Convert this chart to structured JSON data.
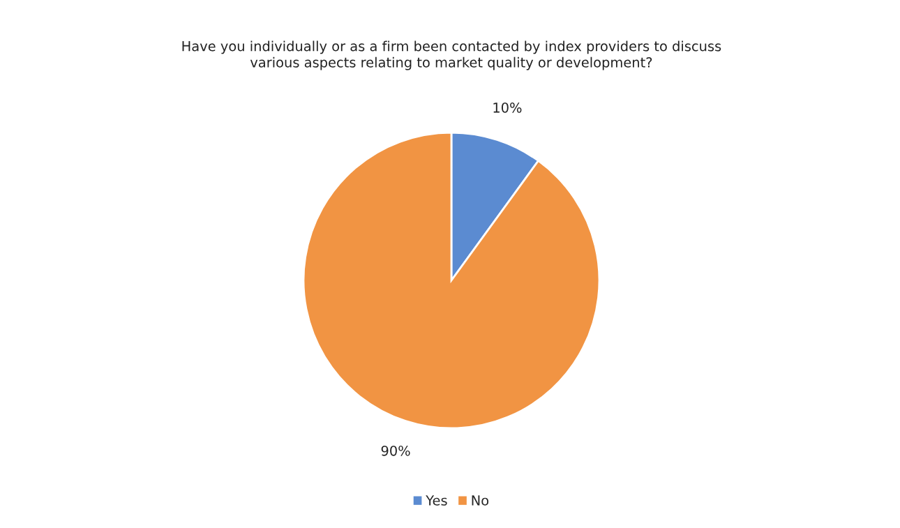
{
  "chart_data": {
    "type": "pie",
    "title": "Have you individually or as a firm been contacted by index providers to discuss\nvarious aspects relating to market quality or development?",
    "categories": [
      "Yes",
      "No"
    ],
    "values": [
      10,
      90
    ],
    "colors": [
      "#5b8bd1",
      "#f19443"
    ],
    "value_labels": [
      "10%",
      "90%"
    ],
    "legend": "bottom"
  }
}
